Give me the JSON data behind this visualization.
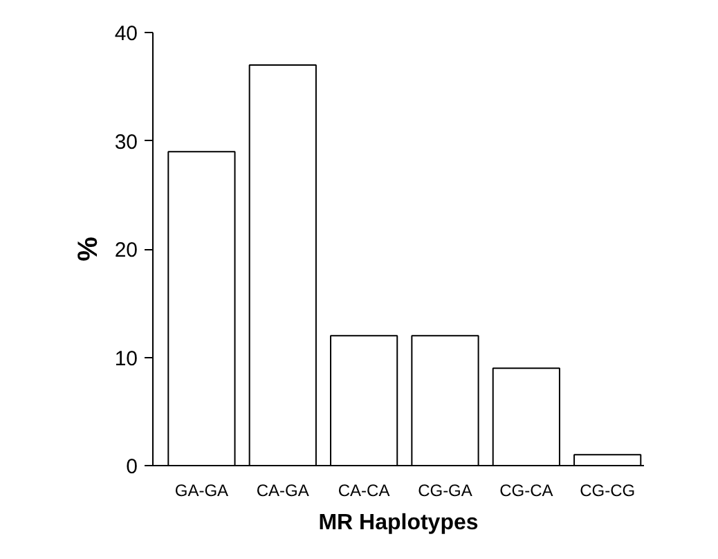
{
  "chart_data": {
    "type": "bar",
    "xlabel": "MR Haplotypes",
    "ylabel": "%",
    "categories": [
      "GA-GA",
      "CA-GA",
      "CA-CA",
      "CG-GA",
      "CG-CA",
      "CG-CG"
    ],
    "values": [
      29,
      37,
      12,
      12,
      9,
      1
    ],
    "color": "#ffffff",
    "ylim": [
      0,
      40
    ],
    "yticks": [
      0,
      10,
      20,
      30,
      40
    ],
    "grid": false
  }
}
